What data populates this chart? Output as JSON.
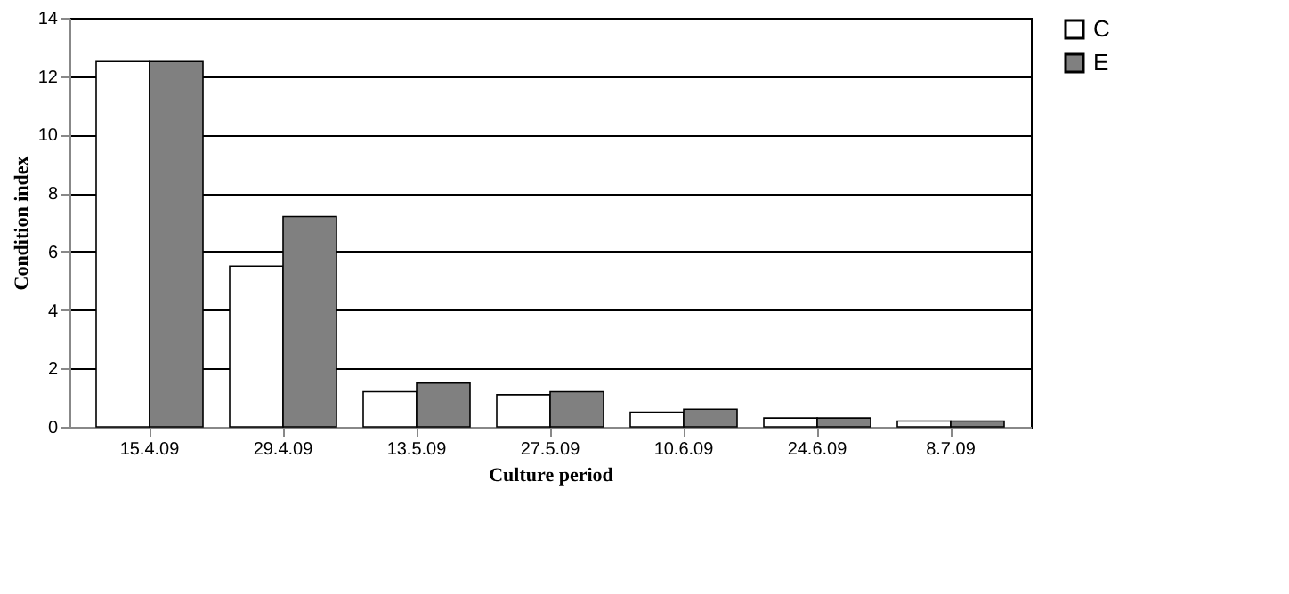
{
  "chart_data": {
    "type": "bar",
    "xlabel": "Culture period",
    "ylabel": "Condition index",
    "categories": [
      "15.4.09",
      "29.4.09",
      "13.5.09",
      "27.5.09",
      "10.6.09",
      "24.6.09",
      "8.7.09"
    ],
    "series": [
      {
        "name": "C",
        "color": "#ffffff",
        "values": [
          12.5,
          5.5,
          1.2,
          1.1,
          0.5,
          0.3,
          0.2
        ]
      },
      {
        "name": "E",
        "color": "#808080",
        "values": [
          12.5,
          7.2,
          1.5,
          1.2,
          0.6,
          0.3,
          0.2
        ]
      }
    ],
    "ylim": [
      0,
      14
    ],
    "yticks": [
      0,
      2,
      4,
      6,
      8,
      10,
      12,
      14
    ],
    "grid": "y",
    "legend": "right"
  }
}
